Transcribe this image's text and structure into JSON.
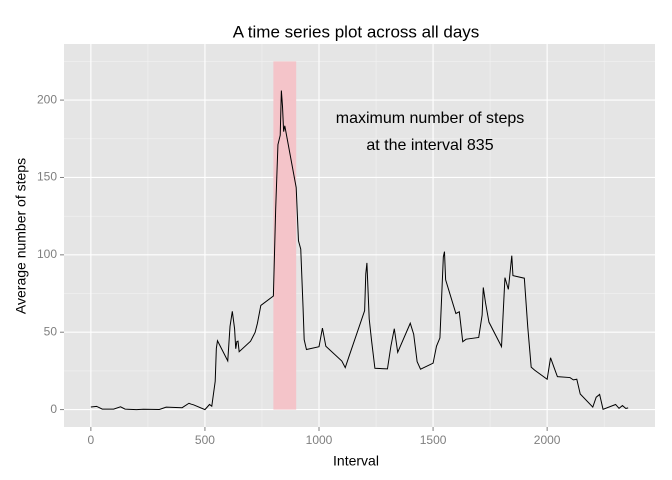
{
  "chart_data": {
    "type": "line",
    "title": "A time series plot across all days",
    "x_label": "Interval",
    "y_label": "Average number of steps",
    "annotation": [
      "maximum number of steps",
      "at the interval 835"
    ],
    "x": [
      0,
      25,
      50,
      100,
      130,
      150,
      200,
      230,
      300,
      330,
      400,
      430,
      440,
      450,
      500,
      520,
      530,
      545,
      550,
      555,
      600,
      610,
      620,
      630,
      635,
      640,
      645,
      650,
      700,
      720,
      730,
      745,
      800,
      810,
      820,
      830,
      835,
      840,
      845,
      850,
      900,
      910,
      920,
      930,
      935,
      945,
      1000,
      1015,
      1030,
      1100,
      1115,
      1130,
      1200,
      1205,
      1210,
      1220,
      1230,
      1245,
      1300,
      1315,
      1330,
      1345,
      1400,
      1415,
      1430,
      1445,
      1500,
      1515,
      1530,
      1545,
      1550,
      1555,
      1600,
      1615,
      1630,
      1645,
      1700,
      1715,
      1720,
      1730,
      1745,
      1800,
      1815,
      1830,
      1845,
      1850,
      1900,
      1915,
      1930,
      1945,
      2000,
      2015,
      2030,
      2045,
      2100,
      2115,
      2130,
      2145,
      2200,
      2215,
      2230,
      2245,
      2300,
      2315,
      2330,
      2345,
      2355
    ],
    "values": [
      1.7,
      2.1,
      0.3,
      0.3,
      1.8,
      0.3,
      0,
      0.2,
      0.1,
      1.6,
      1.2,
      4.1,
      3.5,
      3.1,
      0,
      3.3,
      2.2,
      18.3,
      39.5,
      44.5,
      31.5,
      53.8,
      63.5,
      52.2,
      39.3,
      44,
      44.2,
      37.4,
      44.2,
      49.9,
      55.7,
      67.3,
      73.4,
      129.4,
      171.2,
      177.3,
      206.2,
      195.9,
      179.6,
      183.4,
      143.5,
      109.1,
      103.7,
      66.2,
      45.2,
      38.8,
      40.6,
      52.7,
      40.9,
      31.4,
      27.1,
      33.7,
      63.9,
      87.6,
      94.8,
      58.7,
      45.0,
      26.7,
      26.3,
      40.9,
      52.3,
      37.0,
      55.8,
      48.7,
      31.0,
      26.1,
      30.0,
      41.0,
      46.3,
      98.7,
      102.1,
      83.9,
      62.1,
      63.2,
      43.9,
      45.5,
      46.6,
      61.1,
      78.9,
      68.9,
      56.5,
      40.7,
      85.3,
      77.7,
      99.5,
      86.6,
      84.9,
      53.4,
      27.4,
      25.5,
      19.6,
      33.5,
      27.3,
      21.3,
      20.7,
      19.2,
      19.6,
      10.1,
      1.6,
      8.0,
      9.8,
      0.2,
      3.3,
      0.8,
      2.6,
      0.7,
      1.1
    ],
    "color": "#000000",
    "highlight": {
      "x": [
        800,
        900
      ],
      "y": [
        0,
        225
      ],
      "color": "#f4c4c9"
    },
    "xlim": [
      -117.75,
      2472.75
    ],
    "xticks": [
      0,
      500,
      1000,
      1500,
      2000
    ],
    "ylim": [
      -11.25,
      236.25
    ],
    "yticks": [
      0,
      50,
      100,
      150,
      200
    ],
    "grid": true
  }
}
